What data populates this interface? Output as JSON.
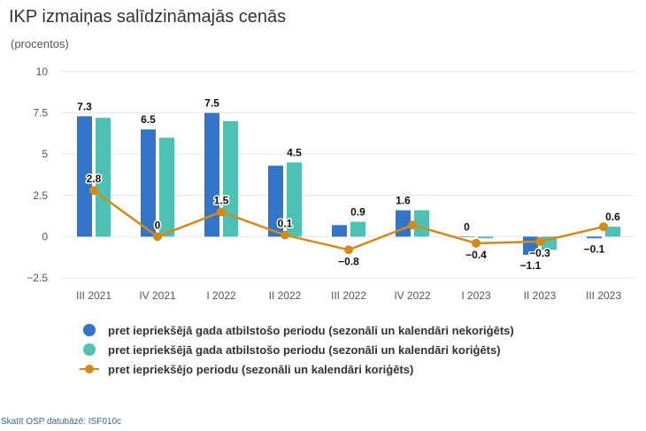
{
  "title": "IKP izmaiņas salīdzināmajās cenās",
  "subtitle": "(procentos)",
  "footer_link": "Skatīt OSP datubāzē: ISF010c",
  "colors": {
    "series1": "#3274c8",
    "series2": "#4fc1b3",
    "series3": "#d4891a",
    "grid": "#e6e6e6"
  },
  "chart_data": {
    "type": "bar",
    "categories": [
      "III 2021",
      "IV 2021",
      "I 2022",
      "II 2022",
      "III 2022",
      "IV 2022",
      "I 2023",
      "II 2023",
      "III 2023"
    ],
    "ylim": [
      -2.5,
      10
    ],
    "yticks": [
      "−2.5",
      "0",
      "2.5",
      "5",
      "7.5",
      "10"
    ],
    "ytick_values": [
      -2.5,
      0,
      2.5,
      5,
      7.5,
      10
    ],
    "grid": true,
    "legend_position": "bottom",
    "series": [
      {
        "name": "pret iepriekšējā gada atbilstošo periodu (sezonāli un kalendāri nekoriģēts)",
        "type": "bar",
        "values": [
          7.3,
          6.5,
          7.5,
          4.3,
          0.7,
          1.6,
          0,
          -1.1,
          -0.1
        ],
        "labels": [
          "7.3",
          "6.5",
          "7.5",
          "",
          "",
          "1.6",
          "0",
          "−1.1",
          "−0.1"
        ]
      },
      {
        "name": "pret iepriekšējā gada atbilstošo periodu (sezonāli un kalendāri koriģēts)",
        "type": "bar",
        "values": [
          7.2,
          6.0,
          7.0,
          4.5,
          0.9,
          1.6,
          -0.1,
          -0.8,
          0.6
        ],
        "labels": [
          "",
          "",
          "",
          "4.5",
          "0.9",
          "",
          "",
          "",
          "0.6"
        ]
      },
      {
        "name": "pret iepriekšējo periodu (sezonāli un kalendāri koriģēts)",
        "type": "line",
        "values": [
          2.8,
          0,
          1.5,
          0.1,
          -0.8,
          0.7,
          -0.4,
          -0.3,
          0.6
        ],
        "labels": [
          "2.8",
          "0",
          "1.5",
          "0.1",
          "−0.8",
          "",
          "−0.4",
          "−0.3",
          ""
        ]
      }
    ]
  }
}
